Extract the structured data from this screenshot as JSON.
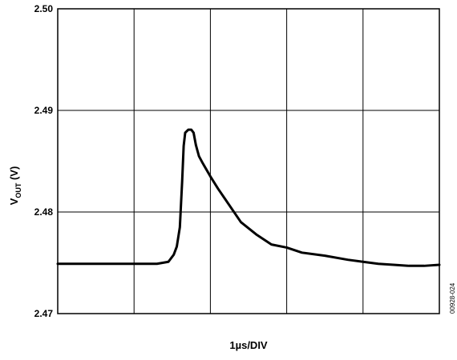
{
  "chart_data": {
    "type": "line",
    "ylabel_main": "V",
    "ylabel_sub": "OUT",
    "ylabel_unit": " (V)",
    "xlabel": "1µs/DIV",
    "figure_id": "00928-024",
    "ylim": [
      2.47,
      2.5
    ],
    "xlim": [
      0,
      5
    ],
    "x_divisions": 5,
    "y_ticks": [
      2.47,
      2.48,
      2.49,
      2.5
    ],
    "y_tick_labels": [
      "2.47",
      "2.48",
      "2.49",
      "2.50"
    ],
    "grid": true,
    "series": [
      {
        "x": [
          0.0,
          0.5,
          1.0,
          1.3,
          1.45,
          1.52,
          1.56,
          1.6,
          1.63,
          1.65,
          1.67,
          1.71,
          1.75,
          1.78,
          1.81,
          1.85,
          1.9,
          2.0,
          2.1,
          2.2,
          2.4,
          2.6,
          2.8,
          3.0,
          3.2,
          3.5,
          3.8,
          4.0,
          4.2,
          4.4,
          4.6,
          4.8,
          5.0
        ],
        "y": [
          2.4749,
          2.4749,
          2.4749,
          2.4749,
          2.4751,
          2.4758,
          2.4766,
          2.4785,
          2.483,
          2.4865,
          2.4878,
          2.4881,
          2.4881,
          2.4878,
          2.4866,
          2.4855,
          2.4848,
          2.4835,
          2.4823,
          2.4812,
          2.479,
          2.4778,
          2.4768,
          2.4765,
          2.476,
          2.4757,
          2.4753,
          2.4751,
          2.4749,
          2.4748,
          2.4747,
          2.4747,
          2.4748
        ]
      }
    ],
    "line_color": "#000000"
  }
}
